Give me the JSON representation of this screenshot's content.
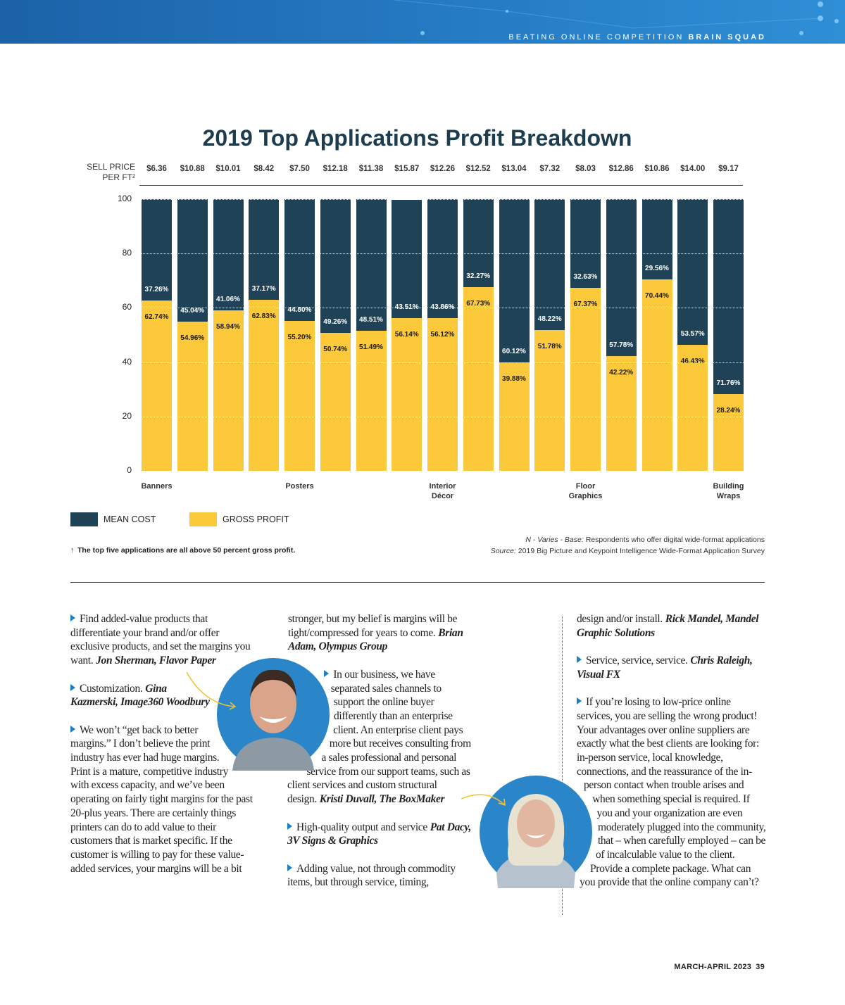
{
  "header": {
    "section": "BEATING ONLINE COMPETITION",
    "column": "BRAIN SQUAD"
  },
  "chart_data": {
    "type": "bar",
    "title": "2019 Top Applications Profit Breakdown",
    "sell_price": {
      "label": "SELL PRICE PER FT²",
      "values": [
        "$6.36",
        "$10.88",
        "$10.01",
        "$8.42",
        "$7.50",
        "$12.18",
        "$11.38",
        "$15.87",
        "$12.26",
        "$12.52",
        "$13.04",
        "$7.32",
        "$8.03",
        "$12.86",
        "$10.86",
        "$14.00",
        "$9.17"
      ]
    },
    "categories": [
      "Banners",
      null,
      null,
      null,
      "Posters",
      null,
      null,
      null,
      "Interior Décor",
      null,
      null,
      null,
      "Floor Graphics",
      null,
      null,
      null,
      "Building Wraps"
    ],
    "series": [
      {
        "name": "MEAN COST",
        "color": "#1f4257",
        "values": [
          37.26,
          45.04,
          41.06,
          37.17,
          44.8,
          49.26,
          48.51,
          43.51,
          43.86,
          32.27,
          60.12,
          48.22,
          32.63,
          57.78,
          29.56,
          53.57,
          71.76
        ],
        "value_labels": [
          "37.26%",
          "45.04%",
          "41.06%",
          "37.17%",
          "44.80%",
          "49.26%",
          "48.51%",
          "43.51%",
          "43.86%",
          "32.27%",
          "60.12%",
          "48.22%",
          "32.63%",
          "57.78%",
          "29.56%",
          "53.57%",
          "71.76%"
        ]
      },
      {
        "name": "GROSS PROFIT",
        "color": "#fcc93a",
        "values": [
          62.74,
          54.96,
          58.94,
          62.83,
          55.2,
          50.74,
          51.49,
          56.14,
          56.12,
          67.73,
          39.88,
          51.78,
          67.37,
          42.22,
          70.44,
          46.43,
          28.24
        ],
        "value_labels": [
          "62.74%",
          "54.96%",
          "58.94%",
          "62.83%",
          "55.20%",
          "50.74%",
          "51.49%",
          "56.14%",
          "56.12%",
          "67.73%",
          "39.88%",
          "51.78%",
          "67.37%",
          "42.22%",
          "70.44%",
          "46.43%",
          "28.24%"
        ]
      }
    ],
    "ylim": [
      0,
      100
    ],
    "yticks": [
      0,
      20,
      40,
      60,
      80,
      100
    ],
    "grid": true
  },
  "note": "The top five applications are all above 50 percent gross profit.",
  "base_note": {
    "lead": "N - Varies - Base:",
    "text": "Respondents who offer digital wide-format applications"
  },
  "source": {
    "lead": "Source:",
    "text": "2019 Big Picture and Keypoint Intelligence Wide-Format Application Survey"
  },
  "columns": [
    [
      {
        "bullet": true,
        "text": "Find added-value products that differentiate your brand and/or offer exclusive products, and set the margins you want.",
        "attribution": "Jon Sherman, Flavor Paper"
      },
      {
        "bullet": true,
        "text": "Customization.",
        "attribution": "Gina Kazmerski, Image360 Woodbury"
      },
      {
        "bullet": true,
        "text": "We won’t “get back to better margins.” I don’t believe the print industry has ever had huge margins. Print is a mature, competitive industry with excess capacity, and we’ve been operating on fairly tight margins for the past 20-plus years. There are certainly things printers can do to add value to their customers that is market specific. If the customer is willing to pay for these value-added services, your margins will be a bit"
      }
    ],
    [
      {
        "bullet": false,
        "text": "stronger, but my belief is margins will be tight/compressed for years to come.",
        "attribution": "Brian Adam, Olympus Group"
      },
      {
        "bullet": true,
        "text": "In our business, we have separated sales channels to support the online buyer differently than an enterprise client. An enterprise client pays more but receives consulting from a sales professional and personal service from our support teams, such as client services and custom structural design.",
        "attribution": "Kristi Duvall, The BoxMaker"
      },
      {
        "bullet": true,
        "text": "High-quality output and service",
        "attribution": "Pat Dacy, 3V Signs & Graphics"
      },
      {
        "bullet": true,
        "text": "Adding value, not through commodity items, but through service, timing,"
      }
    ],
    [
      {
        "bullet": false,
        "text": "design and/or install.",
        "attribution": "Rick Mandel, Mandel Graphic Solutions"
      },
      {
        "bullet": true,
        "text": "Service, service, service.",
        "attribution": "Chris Raleigh, Visual FX"
      },
      {
        "bullet": true,
        "text": "If you’re losing to low-price online services, you are selling the wrong product! Your advantages over online suppliers are exactly what the best clients are looking for: in-person service, local knowledge, connections, and the reassurance of the in-person contact when trouble arises and when something special is required. If you and your organization are even moderately plugged into the community, that – when carefully employed – can be of incalculable value to the client. Provide a complete package. What can you provide that the online company can’t?"
      }
    ]
  ],
  "footer": {
    "issue": "MARCH-APRIL 2023",
    "page": "39"
  }
}
